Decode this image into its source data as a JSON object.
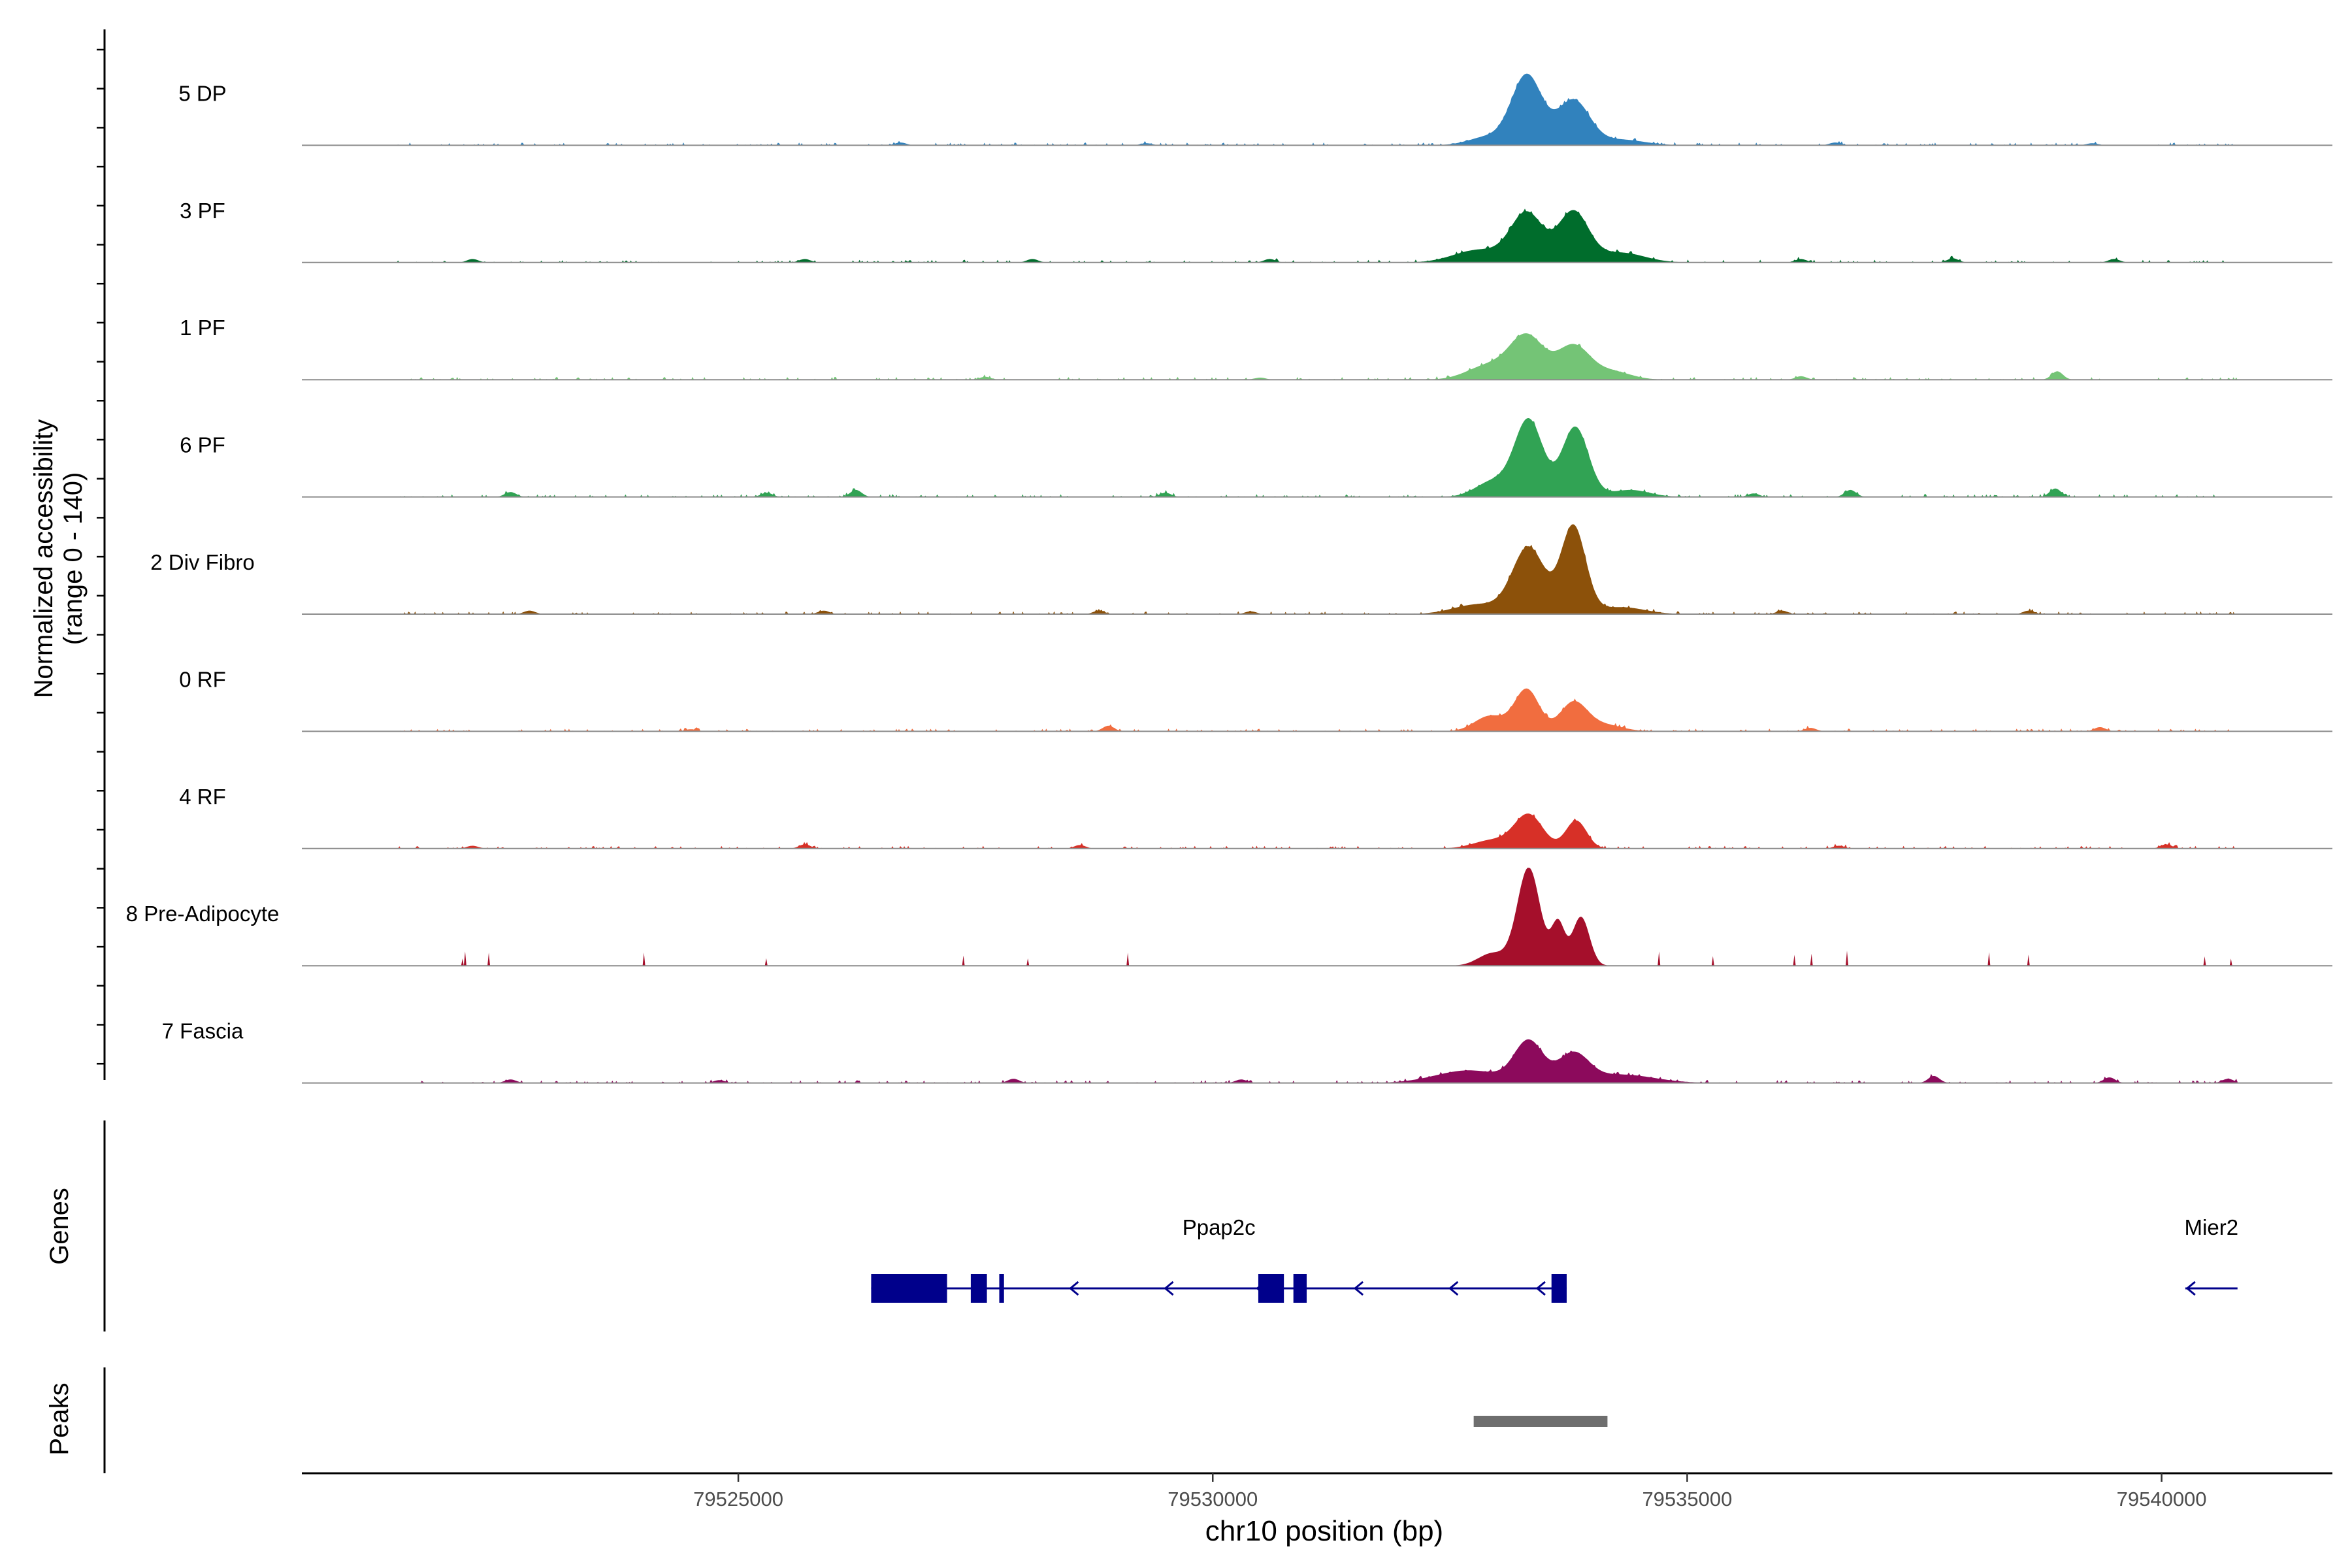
{
  "chart_data": {
    "type": "area",
    "title": "",
    "xlabel": "chr10 position (bp)",
    "ylabel_line1": "Normalized accessibility",
    "ylabel_line2": "(range 0 - 140)",
    "ylim": [
      0,
      140
    ],
    "xlim": [
      79520400,
      79541800
    ],
    "x_ticks": [
      79525000,
      79530000,
      79535000,
      79540000
    ],
    "x_tick_labels": [
      "79525000",
      "79530000",
      "79535000",
      "79540000"
    ],
    "series": [
      {
        "name": "5 DP",
        "color": "#3182bd",
        "noise": [
          [
            79526710,
            4
          ],
          [
            79529300,
            3
          ],
          [
            79536560,
            4
          ],
          [
            79539270,
            3
          ]
        ],
        "peaks": [
          [
            79533310,
            100,
            160
          ],
          [
            79533800,
            64,
            170
          ],
          [
            79532900,
            12,
            200
          ],
          [
            79534300,
            8,
            250
          ]
        ]
      },
      {
        "name": "3 PF",
        "color": "#006d2c",
        "noise": [
          [
            79522200,
            5
          ],
          [
            79525700,
            5
          ],
          [
            79528100,
            5
          ],
          [
            79530600,
            5
          ],
          [
            79536200,
            5
          ],
          [
            79537800,
            6
          ],
          [
            79539500,
            5
          ]
        ],
        "peaks": [
          [
            79533310,
            70,
            170
          ],
          [
            79533800,
            72,
            160
          ],
          [
            79532800,
            18,
            260
          ],
          [
            79534300,
            14,
            250
          ]
        ]
      },
      {
        "name": "1 PF",
        "color": "#74c476",
        "noise": [
          [
            79527600,
            4
          ],
          [
            79530500,
            3
          ],
          [
            79536200,
            5
          ],
          [
            79538900,
            12
          ]
        ],
        "peaks": [
          [
            79533310,
            62,
            180
          ],
          [
            79533800,
            48,
            170
          ],
          [
            79532900,
            20,
            220
          ],
          [
            79534200,
            12,
            200
          ]
        ]
      },
      {
        "name": "6 PF",
        "color": "#31a354",
        "noise": [
          [
            79526240,
            10
          ],
          [
            79525300,
            6
          ],
          [
            79529500,
            6
          ],
          [
            79535700,
            5
          ],
          [
            79536720,
            10
          ],
          [
            79538880,
            12
          ],
          [
            79522600,
            7
          ]
        ],
        "peaks": [
          [
            79533330,
            110,
            150
          ],
          [
            79533820,
            100,
            140
          ],
          [
            79532950,
            22,
            180
          ],
          [
            79534400,
            10,
            200
          ]
        ]
      },
      {
        "name": "2 Div Fibro",
        "color": "#8c510a",
        "noise": [
          [
            79522800,
            5
          ],
          [
            79525900,
            5
          ],
          [
            79528800,
            5
          ],
          [
            79530400,
            4
          ],
          [
            79536000,
            5
          ],
          [
            79538600,
            5
          ]
        ],
        "peaks": [
          [
            79533330,
            95,
            170
          ],
          [
            79533800,
            125,
            130
          ],
          [
            79532800,
            14,
            260
          ],
          [
            79534300,
            10,
            250
          ]
        ]
      },
      {
        "name": "0 RF",
        "color": "#f16d3f",
        "noise": [
          [
            79524500,
            3
          ],
          [
            79528900,
            8
          ],
          [
            79536300,
            5
          ],
          [
            79539350,
            6
          ]
        ],
        "peaks": [
          [
            79533310,
            60,
            130
          ],
          [
            79533800,
            40,
            140
          ],
          [
            79532920,
            22,
            160
          ],
          [
            79534100,
            10,
            200
          ]
        ]
      },
      {
        "name": "4 RF",
        "color": "#d73027",
        "noise": [
          [
            79522200,
            4
          ],
          [
            79525700,
            6
          ],
          [
            79528600,
            5
          ],
          [
            79536600,
            4
          ],
          [
            79540050,
            6
          ]
        ],
        "peaks": [
          [
            79533330,
            48,
            150
          ],
          [
            79533830,
            40,
            110
          ],
          [
            79532950,
            12,
            200
          ]
        ]
      },
      {
        "name": "8 Pre-Adipocyte",
        "color": "#a50f2b",
        "noise": [],
        "peaks": [
          [
            79533330,
            140,
            120
          ],
          [
            79533640,
            60,
            70
          ],
          [
            79533880,
            70,
            90
          ],
          [
            79532950,
            18,
            150
          ]
        ]
      },
      {
        "name": "7 Fascia",
        "color": "#8c0a5c",
        "noise": [
          [
            79522600,
            5
          ],
          [
            79524800,
            4
          ],
          [
            79527900,
            6
          ],
          [
            79530300,
            5
          ],
          [
            79537600,
            10
          ],
          [
            79539450,
            8
          ],
          [
            79540700,
            6
          ]
        ],
        "peaks": [
          [
            79533330,
            58,
            150
          ],
          [
            79533800,
            40,
            160
          ],
          [
            79532700,
            18,
            350
          ],
          [
            79534300,
            12,
            350
          ]
        ]
      }
    ],
    "genes_label": "Genes",
    "genes": [
      {
        "name": "Ppap2c",
        "strand": "-",
        "start": 79526400,
        "end": 79533730,
        "exons": [
          [
            79526400,
            79527200
          ],
          [
            79527450,
            79527620
          ],
          [
            79527750,
            79527800
          ],
          [
            79530480,
            79530750
          ],
          [
            79530850,
            79530990
          ],
          [
            79533570,
            79533730
          ]
        ],
        "arrows": [
          79528500,
          79529500,
          79530470,
          79531500,
          79532500,
          79533420
        ]
      },
      {
        "name": "Mier2",
        "strand": "-",
        "start": 79540250,
        "end": 79540800,
        "exons": [],
        "arrows": [
          79540270
        ]
      }
    ],
    "peaks_label": "Peaks",
    "peak_regions": [
      [
        79532750,
        79534160
      ]
    ]
  }
}
